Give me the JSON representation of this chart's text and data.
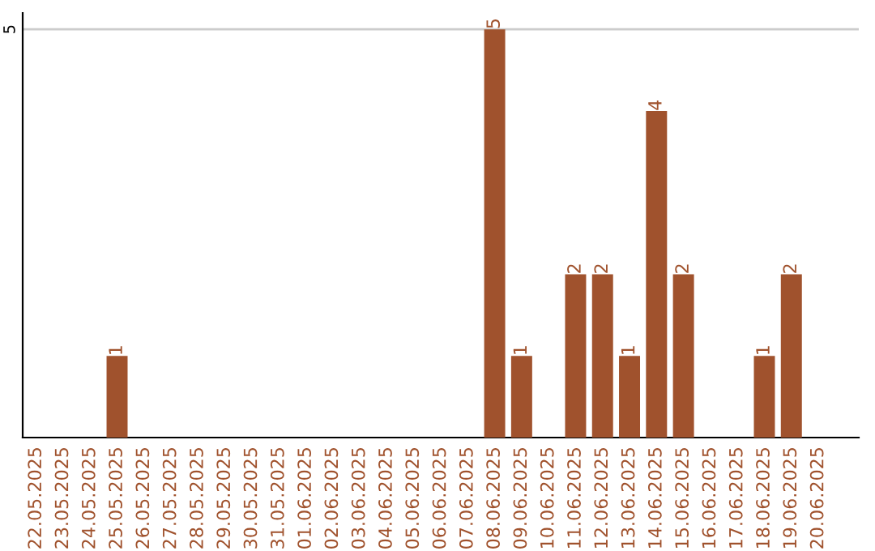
{
  "chart_data": {
    "type": "bar",
    "categories": [
      "22.05.2025",
      "23.05.2025",
      "24.05.2025",
      "25.05.2025",
      "26.05.2025",
      "27.05.2025",
      "28.05.2025",
      "29.05.2025",
      "30.05.2025",
      "31.05.2025",
      "01.06.2025",
      "02.06.2025",
      "03.06.2025",
      "04.06.2025",
      "05.06.2025",
      "06.06.2025",
      "07.06.2025",
      "08.06.2025",
      "09.06.2025",
      "10.06.2025",
      "11.06.2025",
      "12.06.2025",
      "13.06.2025",
      "14.06.2025",
      "15.06.2025",
      "16.06.2025",
      "17.06.2025",
      "18.06.2025",
      "19.06.2025",
      "20.06.2025"
    ],
    "values": [
      0,
      0,
      0,
      1,
      0,
      0,
      0,
      0,
      0,
      0,
      0,
      0,
      0,
      0,
      0,
      0,
      0,
      5,
      1,
      0,
      2,
      2,
      1,
      4,
      2,
      0,
      0,
      1,
      2,
      0
    ],
    "value_labels": [
      null,
      null,
      null,
      "1",
      null,
      null,
      null,
      null,
      null,
      null,
      null,
      null,
      null,
      null,
      null,
      null,
      null,
      "5",
      "1",
      null,
      "2",
      "2",
      "1",
      "4",
      "2",
      null,
      null,
      "1",
      "2",
      null
    ],
    "color": "#a0522d",
    "ylim": [
      0,
      5.2
    ],
    "yticks": [
      5
    ],
    "grid": "y",
    "legend": false
  }
}
